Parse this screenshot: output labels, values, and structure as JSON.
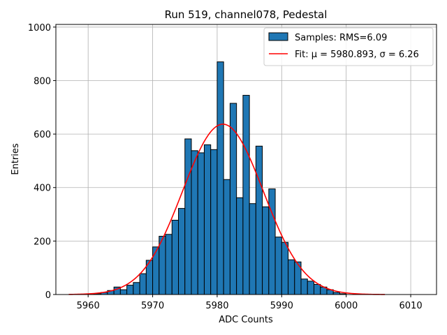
{
  "chart_data": {
    "type": "bar",
    "title": "Run 519, channel078, Pedestal",
    "xlabel": "ADC Counts",
    "ylabel": "Entries",
    "xlim": [
      5955,
      6014
    ],
    "ylim": [
      0,
      1010
    ],
    "xticks": [
      5960,
      5970,
      5980,
      5990,
      6000,
      6010
    ],
    "yticks": [
      0,
      200,
      400,
      600,
      800,
      1000
    ],
    "grid": true,
    "legend_position": "top-right",
    "bar_color": "#1f77b4",
    "fit_color": "#ff0000",
    "histogram": {
      "name": "Samples: RMS=6.09",
      "bin_width": 1,
      "bin_start": [
        5960,
        5961,
        5962,
        5963,
        5964,
        5965,
        5966,
        5967,
        5968,
        5969,
        5970,
        5971,
        5972,
        5973,
        5974,
        5975,
        5976,
        5977,
        5978,
        5979,
        5980,
        5981,
        5982,
        5983,
        5984,
        5985,
        5986,
        5987,
        5988,
        5989,
        5990,
        5991,
        5992,
        5993,
        5994,
        5995,
        5996,
        5997,
        5998,
        5999
      ],
      "counts": [
        2,
        3,
        8,
        15,
        28,
        18,
        35,
        45,
        78,
        128,
        178,
        218,
        225,
        278,
        322,
        582,
        538,
        530,
        560,
        542,
        870,
        430,
        715,
        362,
        745,
        340,
        555,
        328,
        395,
        215,
        195,
        130,
        122,
        58,
        50,
        38,
        28,
        18,
        8,
        3
      ]
    },
    "fit": {
      "name": "Fit: μ = 5980.893, σ = 6.26",
      "mu": 5980.893,
      "sigma": 6.26,
      "amplitude": 637,
      "x_range": [
        5957,
        6006
      ]
    }
  }
}
